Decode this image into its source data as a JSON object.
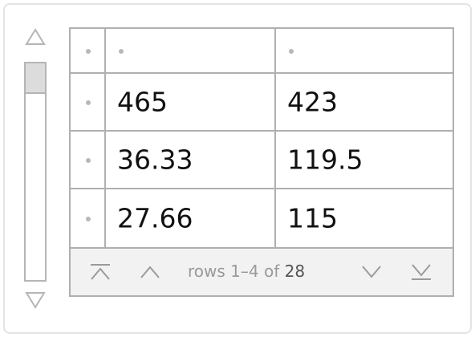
{
  "table": {
    "header": {
      "row_header": "",
      "col1": "",
      "col2": ""
    },
    "rows": [
      {
        "col1": "465",
        "col2": "423"
      },
      {
        "col1": "36.33",
        "col2": "119.5"
      },
      {
        "col1": "27.66",
        "col2": "115"
      }
    ]
  },
  "pager": {
    "rows_label": "rows",
    "range": "1–4",
    "of_label": "of",
    "total": "28"
  },
  "icons": {
    "scroll_up": "triangle-up-icon",
    "scroll_down": "triangle-down-icon",
    "first_page": "first-page-icon",
    "prev_page": "chevron-up-icon",
    "next_page": "chevron-down-icon",
    "last_page": "last-page-icon"
  }
}
